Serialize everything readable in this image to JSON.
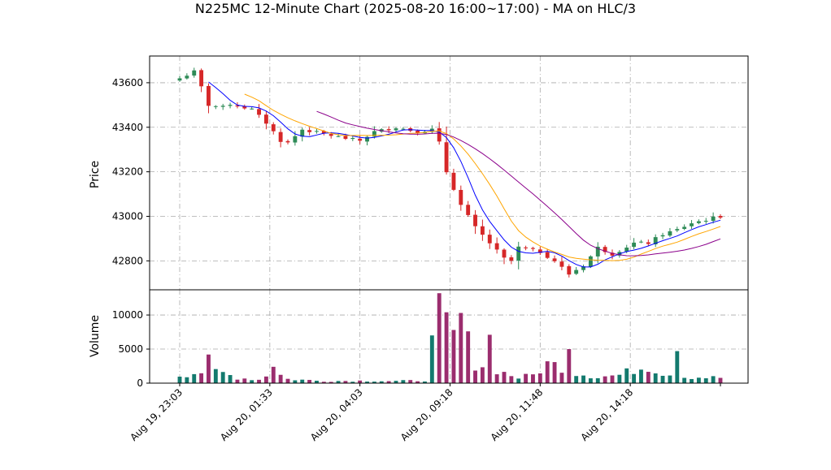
{
  "chart_data": {
    "title": "N225MC 12-Minute Chart (2025-08-20 16:00~17:00) - MA on HLC/3",
    "type": "candlestick",
    "price_panel": {
      "ylabel": "Price",
      "ylim": [
        42670,
        43720
      ],
      "yticks": [
        42800,
        43000,
        43200,
        43400,
        43600
      ],
      "grid": true
    },
    "volume_panel": {
      "ylabel": "Volume",
      "ylim": [
        0,
        13700
      ],
      "yticks": [
        0,
        5000,
        10000
      ],
      "grid": true
    },
    "x_tick_labels": [
      "Aug 19, 23:03",
      "Aug 20, 01:33",
      "Aug 20, 04:03",
      "Aug 20, 09:18",
      "Aug 20, 11:48",
      "Aug 20, 14:18"
    ],
    "x_tick_indices": [
      0,
      12.5,
      25,
      37.5,
      50,
      62.5
    ],
    "colors": {
      "up": "#2e8b57",
      "down": "#d62728",
      "vol_up": "#137a6e",
      "vol_down": "#9b2d6e",
      "ma_fast": "#0000ff",
      "ma_mid": "#ffa500",
      "ma_slow": "#8b008b"
    },
    "close_anchors": [
      [
        0,
        43620
      ],
      [
        2,
        43650
      ],
      [
        3,
        43580
      ],
      [
        4,
        43500
      ],
      [
        6,
        43490
      ],
      [
        7,
        43505
      ],
      [
        10,
        43480
      ],
      [
        12,
        43420
      ],
      [
        14,
        43340
      ],
      [
        15,
        43330
      ],
      [
        17,
        43390
      ],
      [
        20,
        43370
      ],
      [
        23,
        43350
      ],
      [
        25,
        43340
      ],
      [
        27,
        43380
      ],
      [
        30,
        43400
      ],
      [
        33,
        43380
      ],
      [
        35,
        43390
      ],
      [
        36,
        43330
      ],
      [
        37,
        43200
      ],
      [
        39,
        43050
      ],
      [
        41,
        42950
      ],
      [
        43,
        42880
      ],
      [
        45,
        42810
      ],
      [
        46,
        42800
      ],
      [
        47,
        42860
      ],
      [
        50,
        42840
      ],
      [
        52,
        42800
      ],
      [
        54,
        42740
      ],
      [
        56,
        42780
      ],
      [
        58,
        42860
      ],
      [
        60,
        42830
      ],
      [
        63,
        42880
      ],
      [
        65,
        42880
      ],
      [
        67,
        42920
      ],
      [
        69,
        42940
      ],
      [
        71,
        42970
      ],
      [
        75,
        43000
      ]
    ],
    "volume_anchors": [
      [
        0,
        1200
      ],
      [
        4,
        1800
      ],
      [
        6,
        1500
      ],
      [
        8,
        800
      ],
      [
        11,
        500
      ],
      [
        13,
        1800
      ],
      [
        15,
        600
      ],
      [
        20,
        300
      ],
      [
        25,
        350
      ],
      [
        30,
        300
      ],
      [
        34,
        400
      ],
      [
        35,
        5500
      ],
      [
        36,
        9000
      ],
      [
        37,
        7000
      ],
      [
        38,
        6500
      ],
      [
        39,
        7500
      ],
      [
        40,
        5500
      ],
      [
        41,
        3000
      ],
      [
        43,
        2500
      ],
      [
        45,
        1500
      ],
      [
        47,
        800
      ],
      [
        49,
        1200
      ],
      [
        51,
        2800
      ],
      [
        53,
        2500
      ],
      [
        55,
        1500
      ],
      [
        58,
        900
      ],
      [
        61,
        1200
      ],
      [
        63,
        2000
      ],
      [
        65,
        2500
      ],
      [
        67,
        1500
      ],
      [
        70,
        900
      ],
      [
        75,
        800
      ]
    ],
    "volume_spikes": [
      [
        4,
        4200
      ],
      [
        13,
        2400
      ],
      [
        36,
        13200
      ],
      [
        37,
        10400
      ],
      [
        39,
        10300
      ],
      [
        40,
        7600
      ],
      [
        43,
        7100
      ],
      [
        54,
        5000
      ],
      [
        69,
        4700
      ]
    ],
    "num_bars": 76
  }
}
